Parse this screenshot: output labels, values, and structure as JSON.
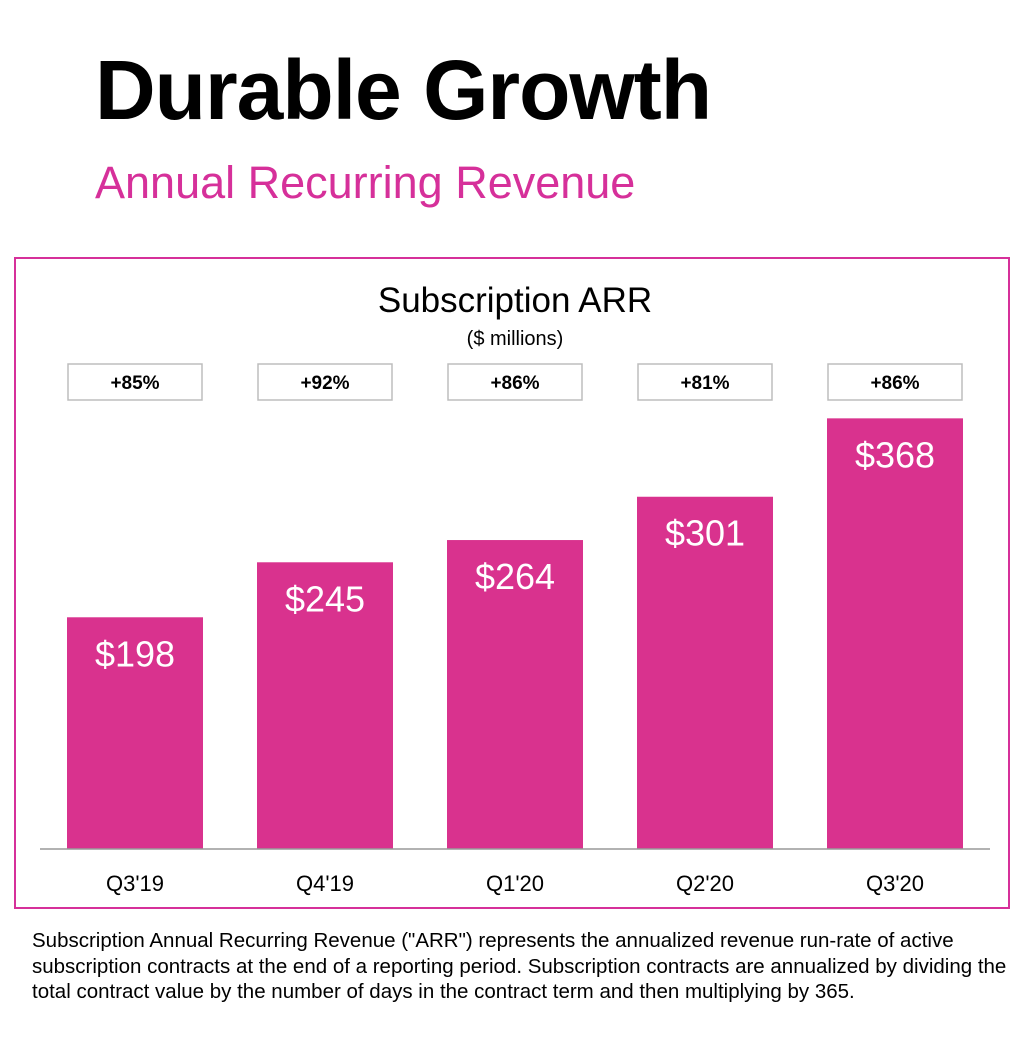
{
  "page": {
    "title": "Durable Growth",
    "subtitle": "Annual Recurring Revenue",
    "footnote": "Subscription Annual Recurring Revenue (\"ARR\") represents the annualized revenue run-rate of active subscription contracts at the end of a reporting period. Subscription contracts are annualized by dividing the total contract value by the number of days in the contract term and then multiplying by 365."
  },
  "colors": {
    "accent": "#d9328e",
    "subtitle": "#d6309a",
    "bar_label": "#ffffff"
  },
  "chart_data": {
    "type": "bar",
    "title": "Subscription ARR",
    "unit_label": "($ millions)",
    "categories": [
      "Q3'19",
      "Q4'19",
      "Q1'20",
      "Q2'20",
      "Q3'20"
    ],
    "values": [
      198,
      245,
      264,
      301,
      368
    ],
    "value_labels": [
      "$198",
      "$245",
      "$264",
      "$301",
      "$368"
    ],
    "growth_labels": [
      "+85%",
      "+92%",
      "+86%",
      "+81%",
      "+86%"
    ],
    "ylim": [
      0,
      370
    ],
    "xlabel": "",
    "ylabel": "",
    "grid": false,
    "legend": "none"
  }
}
